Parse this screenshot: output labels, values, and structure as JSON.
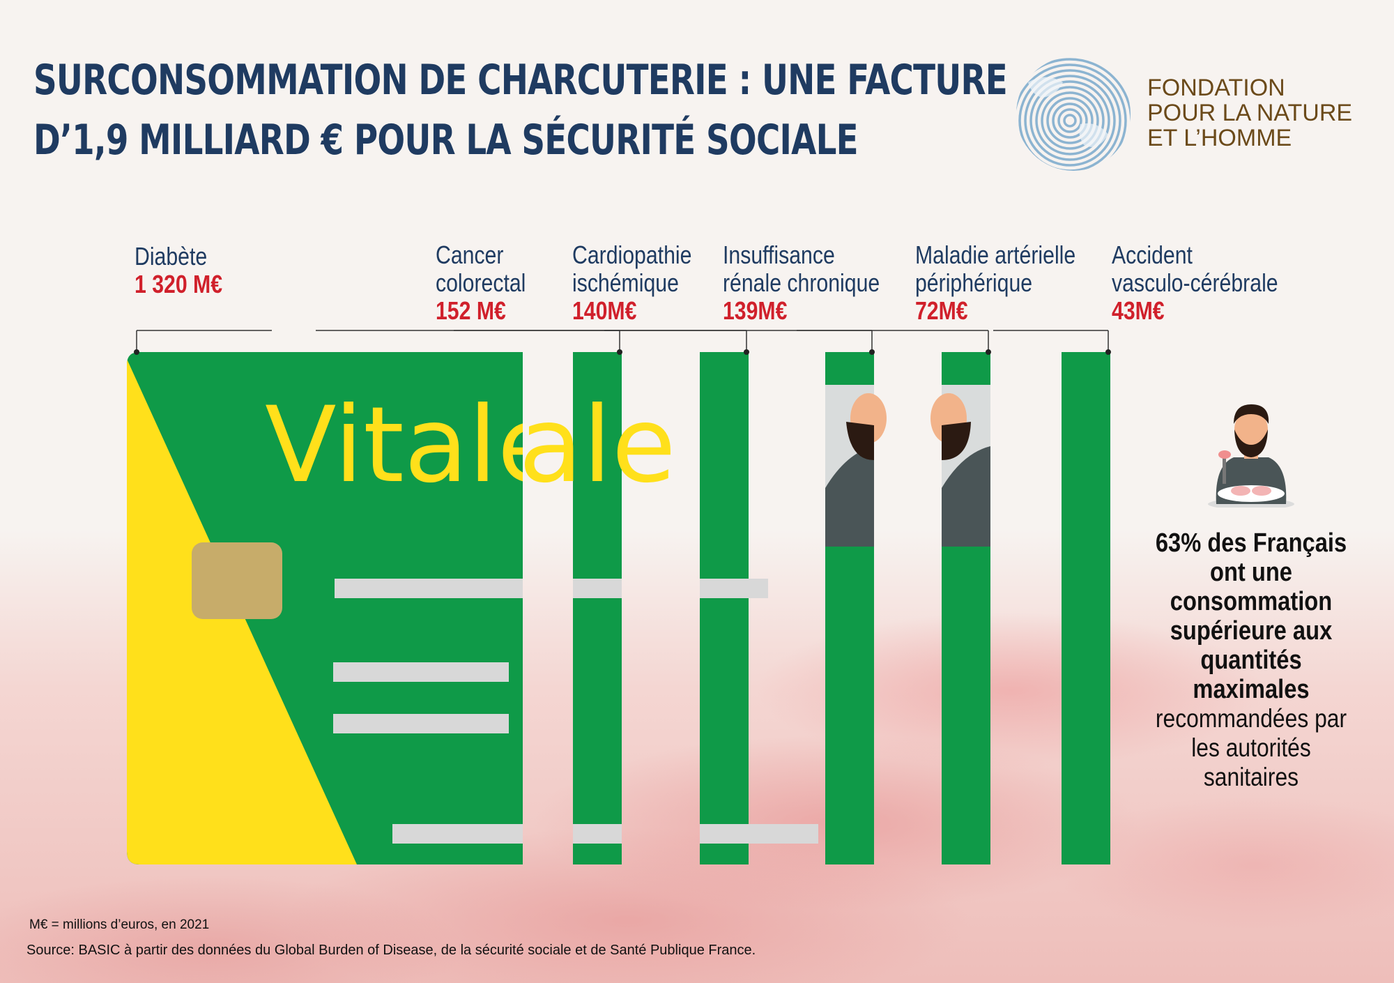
{
  "title_line1": "SURCONSOMMATION DE CHARCUTERIE : UNE FACTURE",
  "title_line2": "D’1,9 MILLIARD € POUR LA SÉCURITÉ SOCIALE",
  "logo": {
    "line1": "FONDATION",
    "line2": "POUR LA NATURE",
    "line3": "ET L’HOMME"
  },
  "colors": {
    "title": "#1f3b61",
    "label": "#1f3b61",
    "value": "#d0202b",
    "bar": "#0f9a48",
    "card_yellow": "#ffe01b",
    "logo_text": "#6b4a1a"
  },
  "card_word": "Vitale",
  "chart_data": {
    "type": "bar",
    "title": "SURCONSOMMATION DE CHARCUTERIE : UNE FACTURE D’1,9 MILLIARD € POUR LA SÉCURITÉ SOCIALE",
    "unit": "M€",
    "categories": [
      [
        "Diabète"
      ],
      [
        "Cancer",
        "colorectal"
      ],
      [
        "Cardiopathie",
        "ischémique"
      ],
      [
        "Insuffisance",
        "rénale chronique"
      ],
      [
        "Maladie artérielle",
        "périphérique"
      ],
      [
        "Accident",
        "vasculo-cérébrale"
      ]
    ],
    "values": [
      1320,
      152,
      140,
      139,
      72,
      43
    ],
    "value_labels": [
      "1 320 M€",
      "152 M€",
      "140M€",
      "139M€",
      "72M€",
      "43M€"
    ],
    "encoding": "bar width proportional to value"
  },
  "fact": {
    "strong": "63% des Français ont une consommation supérieure aux quantités maximales",
    "rest": "recommandées par les autorités sanitaires"
  },
  "footer": {
    "note": "M€ = millions d’euros, en 2021",
    "source": "Source: BASIC à partir des données du Global Burden of Disease, de la sécurité sociale et de Santé Publique France."
  }
}
